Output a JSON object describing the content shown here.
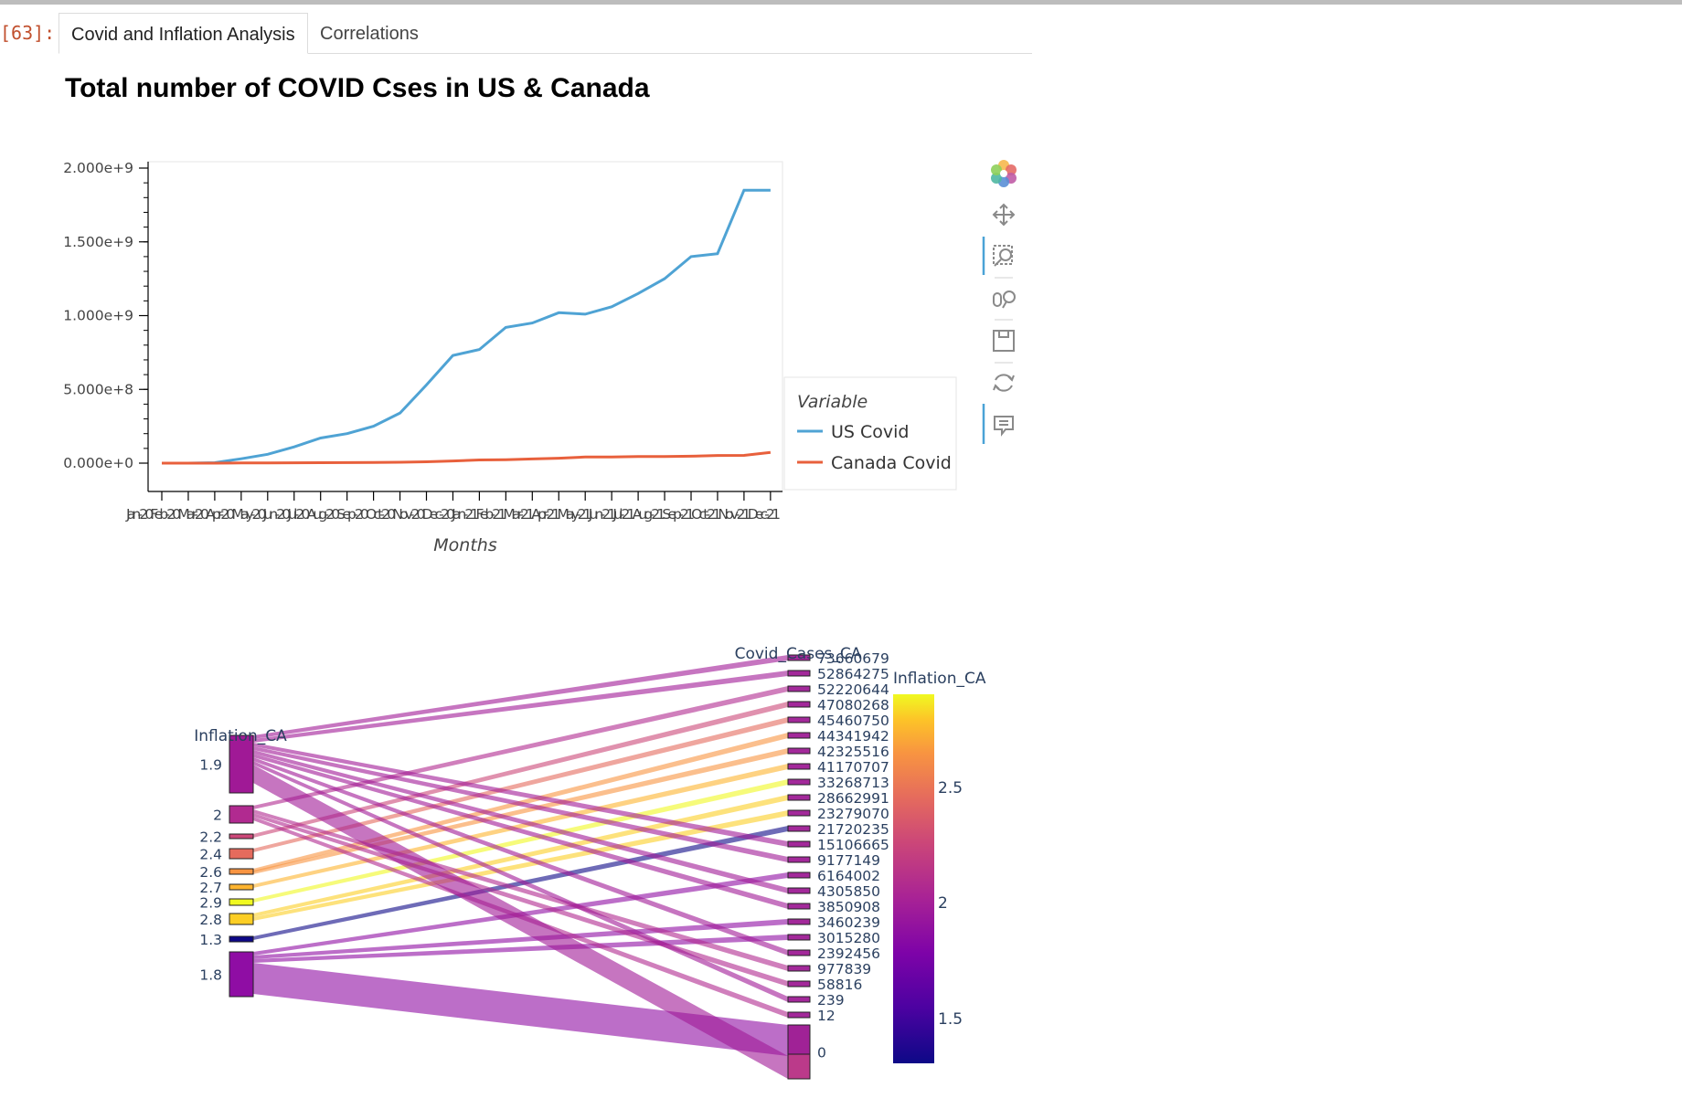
{
  "cell": {
    "prompt": "[63]:"
  },
  "tabs": [
    {
      "label": "Covid and Inflation Analysis",
      "active": true
    },
    {
      "label": "Correlations",
      "active": false
    }
  ],
  "toolbar": {
    "tools": [
      "bokeh-logo-icon",
      "pan-icon",
      "box-zoom-icon",
      "wheel-zoom-icon",
      "save-icon",
      "reset-icon",
      "hover-icon"
    ]
  },
  "chart_data": [
    {
      "type": "line",
      "title": "Total number of COVID Cses in US & Canada",
      "xlabel": "Months",
      "ylabel": "",
      "ylim": [
        -120000000,
        2070000000
      ],
      "y_ticks": [
        0,
        500000000,
        1000000000,
        1500000000,
        2000000000
      ],
      "y_tick_labels": [
        "0.000e+0",
        "5.000e+8",
        "1.000e+9",
        "1.500e+9",
        "2.000e+9"
      ],
      "x": [
        "Jan-20",
        "Feb-20",
        "Mar-20",
        "Apr-20",
        "May-20",
        "Jun-20",
        "Jul-20",
        "Aug-20",
        "Sep-20",
        "Oct-20",
        "Nov-20",
        "Dec-20",
        "Jan-21",
        "Feb-21",
        "Mar-21",
        "Apr-21",
        "May-21",
        "Jun-21",
        "Jul-21",
        "Aug-21",
        "Sep-21",
        "Oct-21",
        "Nov-21",
        "Dec-21"
      ],
      "x_tick_text": "Jan-20Feb-20Mar-20Apr-20May-20Jun-20Jul-20Aug-20Sep-20Oct-20Nov-20Dec-20Jan-21Feb-21Mar-21Apr-21May-21Jun-21Jul-21Aug-21Sep-21Oct-21Nov-21Dec-21",
      "legend_title": "Variable",
      "legend_position": "right",
      "colors": {
        "US Covid": "#4fa3d4",
        "Canada Covid": "#e8603c"
      },
      "series": [
        {
          "name": "US Covid",
          "values": [
            0,
            0,
            3000000,
            30000000,
            60000000,
            110000000,
            170000000,
            200000000,
            250000000,
            340000000,
            530000000,
            730000000,
            770000000,
            920000000,
            950000000,
            1020000000,
            1010000000,
            1060000000,
            1150000000,
            1250000000,
            1400000000,
            1420000000,
            1850000000,
            1850000000
          ]
        },
        {
          "name": "Canada Covid",
          "values": [
            0,
            0,
            200000,
            1000000,
            2000000,
            2500000,
            3000000,
            3500000,
            4300000,
            6000000,
            9000000,
            15000000,
            21700000,
            23300000,
            28700000,
            33300000,
            41200000,
            42300000,
            44300000,
            45500000,
            47100000,
            52200000,
            52900000,
            73000000
          ]
        }
      ]
    },
    {
      "type": "parallel_categories",
      "left_axis_title": "Inflation_CA",
      "right_axis_title": "Covid_Cases_CA",
      "colorbar_title": "Inflation_CA",
      "colorbar_ticks": [
        "2.5",
        "2",
        "1.5"
      ],
      "left_categories": [
        "1.9",
        "2",
        "2.2",
        "2.4",
        "2.6",
        "2.7",
        "2.9",
        "2.8",
        "1.3",
        "1.8"
      ],
      "right_categories": [
        "73660679",
        "52864275",
        "52220644",
        "47080268",
        "45460750",
        "44341942",
        "42325516",
        "41170707",
        "33268713",
        "28662991",
        "23279070",
        "21720235",
        "15106665",
        "9177149",
        "6164002",
        "4305850",
        "3850908",
        "3460239",
        "3015280",
        "2392456",
        "977839",
        "58816",
        "239",
        "12",
        "0"
      ],
      "links": [
        [
          "1.9",
          "73660679"
        ],
        [
          "1.9",
          "52864275"
        ],
        [
          "2",
          "52220644"
        ],
        [
          "2.2",
          "47080268"
        ],
        [
          "2.4",
          "45460750"
        ],
        [
          "2.6",
          "44341942"
        ],
        [
          "2.6",
          "42325516"
        ],
        [
          "2.7",
          "41170707"
        ],
        [
          "2.9",
          "33268713"
        ],
        [
          "2.8",
          "28662991"
        ],
        [
          "2.8",
          "23279070"
        ],
        [
          "1.3",
          "21720235"
        ],
        [
          "1.9",
          "15106665"
        ],
        [
          "1.9",
          "9177149"
        ],
        [
          "1.8",
          "6164002"
        ],
        [
          "1.9",
          "4305850"
        ],
        [
          "1.9",
          "3850908"
        ],
        [
          "1.8",
          "3460239"
        ],
        [
          "1.8",
          "3015280"
        ],
        [
          "1.9",
          "2392456"
        ],
        [
          "2",
          "977839"
        ],
        [
          "2",
          "58816"
        ],
        [
          "1.9",
          "239"
        ],
        [
          "2",
          "12"
        ],
        [
          "1.8",
          "0"
        ],
        [
          "1.9",
          "0"
        ]
      ]
    }
  ]
}
